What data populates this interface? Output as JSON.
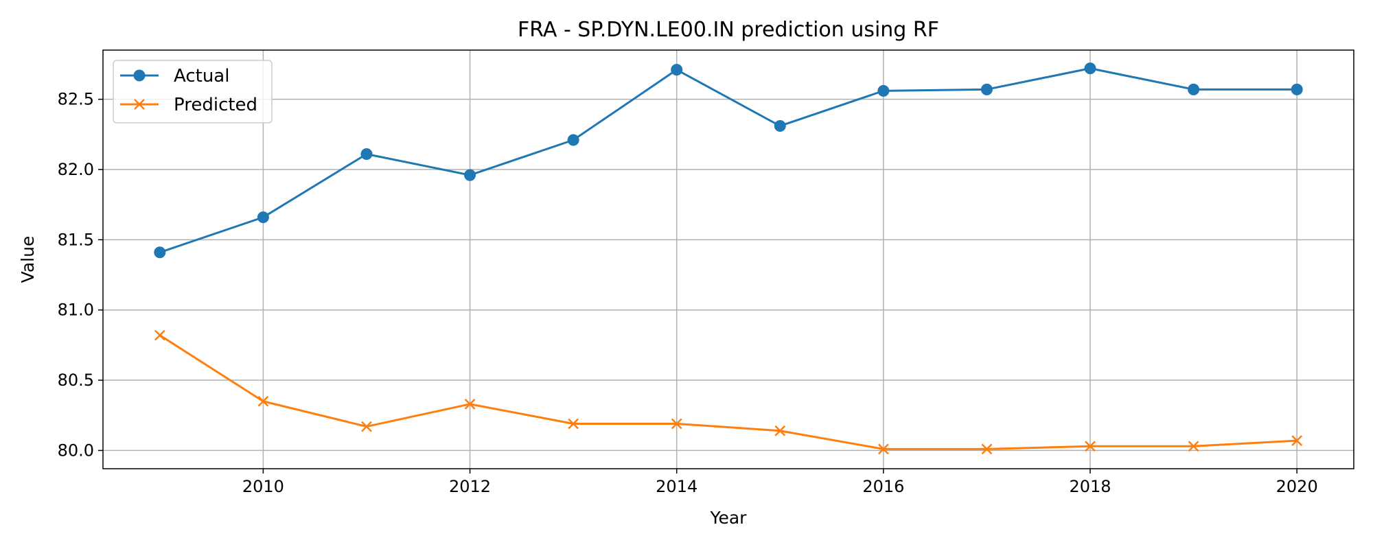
{
  "chart_data": {
    "type": "line",
    "title": "FRA - SP.DYN.LE00.IN prediction using RF",
    "xlabel": "Year",
    "ylabel": "Value",
    "x": [
      2009,
      2010,
      2011,
      2012,
      2013,
      2014,
      2015,
      2016,
      2017,
      2018,
      2019,
      2020
    ],
    "xlim": [
      2008.45,
      2020.55
    ],
    "ylim": [
      79.87,
      82.85
    ],
    "xticks": [
      2010,
      2012,
      2014,
      2016,
      2018,
      2020
    ],
    "yticks": [
      80.0,
      80.5,
      81.0,
      81.5,
      82.0,
      82.5
    ],
    "xtick_labels": [
      "2010",
      "2012",
      "2014",
      "2016",
      "2018",
      "2020"
    ],
    "ytick_labels": [
      "80.0",
      "80.5",
      "81.0",
      "81.5",
      "82.0",
      "82.5"
    ],
    "grid": true,
    "legend_position": "top-left",
    "series": [
      {
        "name": "Actual",
        "color": "#1f77b4",
        "marker": "circle",
        "values": [
          81.41,
          81.66,
          82.11,
          81.96,
          82.21,
          82.71,
          82.31,
          82.56,
          82.57,
          82.72,
          82.57,
          82.57
        ]
      },
      {
        "name": "Predicted",
        "color": "#ff7f0e",
        "marker": "x",
        "values": [
          80.82,
          80.35,
          80.17,
          80.33,
          80.19,
          80.19,
          80.14,
          80.01,
          80.01,
          80.03,
          80.03,
          80.07
        ]
      }
    ]
  }
}
